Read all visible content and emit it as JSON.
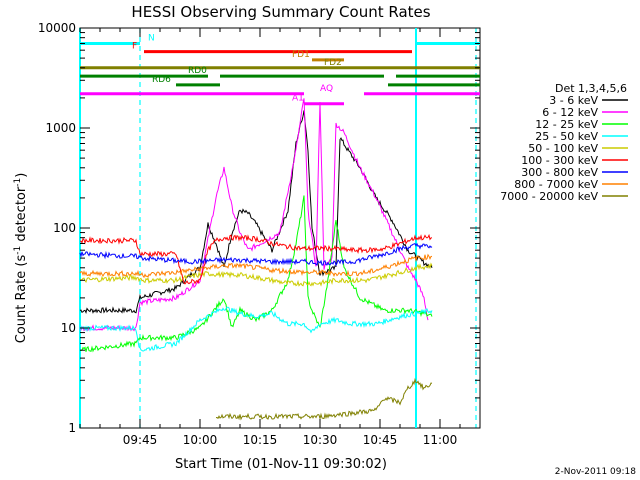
{
  "chart_data": {
    "type": "line",
    "title": "HESSI Observing Summary Count Rates",
    "xlabel": "Start Time (01-Nov-11 09:30:02)",
    "ylabel_main": "Count Rate (s",
    "ylabel_sup1": "-1",
    "ylabel_mid": " detector",
    "ylabel_sup2": "-1",
    "ylabel_end": ")",
    "timestamp": "2-Nov-2011 09:18",
    "y_scale": "log",
    "ylim": [
      1,
      10000
    ],
    "xlim_minutes": [
      0,
      100
    ],
    "x_ticks": [
      {
        "label": "09:45",
        "min": 15
      },
      {
        "label": "10:00",
        "min": 30
      },
      {
        "label": "10:15",
        "min": 45
      },
      {
        "label": "10:30",
        "min": 60
      },
      {
        "label": "10:45",
        "min": 75
      },
      {
        "label": "11:00",
        "min": 90
      }
    ],
    "y_ticks": [
      {
        "label": "1",
        "value": 1
      },
      {
        "label": "10",
        "value": 10
      },
      {
        "label": "100",
        "value": 100
      },
      {
        "label": "1000",
        "value": 1000
      },
      {
        "label": "10000",
        "value": 10000
      }
    ],
    "legend_title": "Det 1,3,4,5,6",
    "series": [
      {
        "name": "3 - 6 keV",
        "color": "#000000",
        "points": [
          [
            0,
            15
          ],
          [
            14,
            15
          ],
          [
            15,
            20
          ],
          [
            24,
            25
          ],
          [
            28,
            35
          ],
          [
            30,
            40
          ],
          [
            32,
            110
          ],
          [
            34,
            70
          ],
          [
            36,
            40
          ],
          [
            38,
            90
          ],
          [
            40,
            150
          ],
          [
            42,
            140
          ],
          [
            44,
            110
          ],
          [
            48,
            60
          ],
          [
            52,
            150
          ],
          [
            54,
            700
          ],
          [
            56,
            1500
          ],
          [
            57,
            600
          ],
          [
            58,
            100
          ],
          [
            60,
            35
          ],
          [
            64,
            40
          ],
          [
            65,
            800
          ],
          [
            67,
            600
          ],
          [
            70,
            400
          ],
          [
            74,
            200
          ],
          [
            78,
            120
          ],
          [
            82,
            60
          ],
          [
            86,
            45
          ],
          [
            88,
            40
          ]
        ]
      },
      {
        "name": "6 - 12 keV",
        "color": "#ff00ff",
        "points": [
          [
            0,
            10
          ],
          [
            14,
            10
          ],
          [
            15,
            18
          ],
          [
            24,
            20
          ],
          [
            30,
            30
          ],
          [
            34,
            200
          ],
          [
            36,
            400
          ],
          [
            38,
            160
          ],
          [
            40,
            90
          ],
          [
            42,
            60
          ],
          [
            50,
            90
          ],
          [
            54,
            600
          ],
          [
            56,
            2000
          ],
          [
            57,
            150
          ],
          [
            59,
            40
          ],
          [
            60,
            1900
          ],
          [
            61,
            40
          ],
          [
            63,
            50
          ],
          [
            64,
            1100
          ],
          [
            66,
            900
          ],
          [
            70,
            400
          ],
          [
            74,
            200
          ],
          [
            78,
            90
          ],
          [
            80,
            60
          ],
          [
            82,
            40
          ],
          [
            84,
            30
          ],
          [
            86,
            20
          ],
          [
            87,
            12
          ]
        ]
      },
      {
        "name": "12 - 25 keV",
        "color": "#00ff00",
        "points": [
          [
            0,
            6
          ],
          [
            14,
            7
          ],
          [
            15,
            8
          ],
          [
            24,
            8
          ],
          [
            30,
            10
          ],
          [
            36,
            20
          ],
          [
            38,
            10
          ],
          [
            40,
            15
          ],
          [
            44,
            12
          ],
          [
            48,
            15
          ],
          [
            52,
            30
          ],
          [
            54,
            70
          ],
          [
            56,
            200
          ],
          [
            57,
            20
          ],
          [
            58,
            15
          ],
          [
            60,
            10
          ],
          [
            62,
            30
          ],
          [
            64,
            120
          ],
          [
            66,
            40
          ],
          [
            70,
            20
          ],
          [
            76,
            15
          ],
          [
            82,
            15
          ],
          [
            86,
            14
          ],
          [
            88,
            13
          ]
        ]
      },
      {
        "name": "25 - 50 keV",
        "color": "#00ffff",
        "points": [
          [
            0,
            10
          ],
          [
            14,
            10
          ],
          [
            15,
            6
          ],
          [
            24,
            7
          ],
          [
            30,
            12
          ],
          [
            36,
            16
          ],
          [
            40,
            14
          ],
          [
            44,
            13
          ],
          [
            48,
            14
          ],
          [
            52,
            11
          ],
          [
            56,
            11
          ],
          [
            58,
            9
          ],
          [
            60,
            11
          ],
          [
            64,
            12
          ],
          [
            68,
            11
          ],
          [
            74,
            11
          ],
          [
            80,
            13
          ],
          [
            84,
            14
          ],
          [
            88,
            15
          ]
        ]
      },
      {
        "name": "50 - 100 keV",
        "color": "#cccc00",
        "points": [
          [
            0,
            30
          ],
          [
            14,
            32
          ],
          [
            16,
            30
          ],
          [
            24,
            30
          ],
          [
            28,
            33
          ],
          [
            32,
            35
          ],
          [
            36,
            34
          ],
          [
            40,
            34
          ],
          [
            44,
            32
          ],
          [
            48,
            30
          ],
          [
            52,
            28
          ],
          [
            56,
            28
          ],
          [
            60,
            28
          ],
          [
            64,
            30
          ],
          [
            68,
            30
          ],
          [
            72,
            30
          ],
          [
            76,
            33
          ],
          [
            80,
            36
          ],
          [
            84,
            40
          ],
          [
            88,
            42
          ]
        ]
      },
      {
        "name": "100 - 300 keV",
        "color": "#ff0000",
        "points": [
          [
            0,
            75
          ],
          [
            14,
            75
          ],
          [
            15,
            55
          ],
          [
            24,
            55
          ],
          [
            26,
            28
          ],
          [
            30,
            30
          ],
          [
            32,
            60
          ],
          [
            34,
            75
          ],
          [
            36,
            80
          ],
          [
            40,
            80
          ],
          [
            44,
            78
          ],
          [
            48,
            70
          ],
          [
            52,
            65
          ],
          [
            56,
            62
          ],
          [
            60,
            63
          ],
          [
            64,
            62
          ],
          [
            68,
            60
          ],
          [
            72,
            60
          ],
          [
            76,
            62
          ],
          [
            80,
            70
          ],
          [
            84,
            80
          ],
          [
            88,
            80
          ]
        ]
      },
      {
        "name": "300 - 800 keV",
        "color": "#0000ff",
        "points": [
          [
            0,
            55
          ],
          [
            14,
            52
          ],
          [
            16,
            50
          ],
          [
            24,
            47
          ],
          [
            28,
            46
          ],
          [
            32,
            47
          ],
          [
            36,
            48
          ],
          [
            40,
            48
          ],
          [
            44,
            47
          ],
          [
            48,
            46
          ],
          [
            52,
            46
          ],
          [
            56,
            46
          ],
          [
            60,
            45
          ],
          [
            64,
            45
          ],
          [
            68,
            46
          ],
          [
            72,
            50
          ],
          [
            76,
            55
          ],
          [
            80,
            62
          ],
          [
            84,
            67
          ],
          [
            88,
            65
          ]
        ]
      },
      {
        "name": "800 - 7000 keV",
        "color": "#ff8000",
        "points": [
          [
            0,
            35
          ],
          [
            14,
            35
          ],
          [
            16,
            34
          ],
          [
            24,
            36
          ],
          [
            28,
            38
          ],
          [
            32,
            40
          ],
          [
            36,
            42
          ],
          [
            40,
            42
          ],
          [
            44,
            40
          ],
          [
            48,
            38
          ],
          [
            52,
            37
          ],
          [
            56,
            36
          ],
          [
            60,
            36
          ],
          [
            64,
            35
          ],
          [
            68,
            35
          ],
          [
            72,
            36
          ],
          [
            76,
            40
          ],
          [
            80,
            45
          ],
          [
            84,
            50
          ],
          [
            88,
            52
          ]
        ]
      },
      {
        "name": "7000 - 20000 keV",
        "color": "#808000",
        "points": [
          [
            34,
            1.3
          ],
          [
            60,
            1.3
          ],
          [
            74,
            1.5
          ],
          [
            76,
            2
          ],
          [
            80,
            1.8
          ],
          [
            82,
            2.5
          ],
          [
            84,
            3
          ],
          [
            86,
            2.5
          ],
          [
            88,
            2.8
          ]
        ]
      }
    ],
    "flag_bars": [
      {
        "label": "N",
        "color": "#00ffff",
        "y_value": 7000,
        "segments": [
          [
            0,
            15
          ],
          [
            84,
            100
          ]
        ],
        "label_min": 17
      },
      {
        "label": "F",
        "color": "#ff0000",
        "y_value": 5800,
        "segments": [
          [
            16,
            83
          ]
        ],
        "label_min": 13
      },
      {
        "label": "FD1",
        "color": "#c08000",
        "y_value": 4800,
        "segments": [
          [
            58,
            66
          ]
        ],
        "label_min": 53
      },
      {
        "label": "FD2",
        "color": "#808000",
        "y_value": 4000,
        "segments": [
          [
            0,
            100
          ]
        ],
        "label_min": 61
      },
      {
        "label": "RD0",
        "color": "#008000",
        "y_value": 3300,
        "segments": [
          [
            0,
            32
          ],
          [
            35,
            76
          ],
          [
            79,
            100
          ]
        ],
        "label_min": 27
      },
      {
        "label": "RD6",
        "color": "#008000",
        "y_value": 2700,
        "segments": [
          [
            24,
            35
          ],
          [
            77,
            100
          ]
        ],
        "label_min": 18
      },
      {
        "label": "AQ",
        "color": "#ff00ff",
        "y_value": 2200,
        "segments": [
          [
            0,
            56
          ],
          [
            71,
            100
          ]
        ],
        "label_min": 60
      },
      {
        "label": "A1",
        "color": "#ff00ff",
        "y_value": 1750,
        "segments": [
          [
            56,
            66
          ]
        ],
        "label_min": 53
      }
    ],
    "vertical_markers_min": [
      0,
      15,
      84,
      99
    ]
  }
}
